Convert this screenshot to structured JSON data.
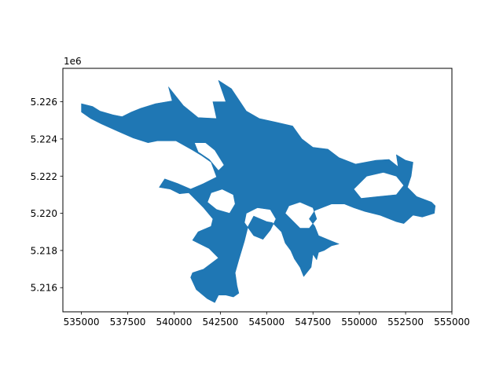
{
  "chart_data": {
    "type": "map",
    "title": "",
    "xlabel": "",
    "ylabel": "",
    "y_offset_label": "1e6",
    "xlim": [
      534000,
      555000
    ],
    "ylim": [
      5214700,
      5227800
    ],
    "xticks": [
      535000,
      537500,
      540000,
      542500,
      545000,
      547500,
      550000,
      552500,
      555000
    ],
    "xtick_labels": [
      "535000",
      "537500",
      "540000",
      "542500",
      "545000",
      "547500",
      "550000",
      "552500",
      "555000"
    ],
    "yticks": [
      5216000,
      5218000,
      5220000,
      5222000,
      5224000,
      5226000
    ],
    "ytick_labels": [
      "5.216",
      "5.218",
      "5.220",
      "5.222",
      "5.224",
      "5.226"
    ],
    "fill_color": "#1f77b4",
    "grid": false,
    "polygon": [
      [
        535000,
        5225900
      ],
      [
        535600,
        5225750
      ],
      [
        536000,
        5225500
      ],
      [
        536700,
        5225300
      ],
      [
        537200,
        5225200
      ],
      [
        537700,
        5225450
      ],
      [
        538200,
        5225650
      ],
      [
        539000,
        5225900
      ],
      [
        539900,
        5226050
      ],
      [
        539700,
        5226800
      ],
      [
        540500,
        5225800
      ],
      [
        541300,
        5225150
      ],
      [
        542300,
        5225100
      ],
      [
        542100,
        5226000
      ],
      [
        542800,
        5226000
      ],
      [
        542400,
        5227150
      ],
      [
        543100,
        5226700
      ],
      [
        543900,
        5225500
      ],
      [
        544600,
        5225100
      ],
      [
        545500,
        5224900
      ],
      [
        546400,
        5224700
      ],
      [
        546900,
        5224000
      ],
      [
        547500,
        5223550
      ],
      [
        548300,
        5223450
      ],
      [
        548900,
        5223000
      ],
      [
        549800,
        5222650
      ],
      [
        550900,
        5222850
      ],
      [
        551600,
        5222900
      ],
      [
        552100,
        5222500
      ],
      [
        552000,
        5223150
      ],
      [
        552500,
        5222850
      ],
      [
        552900,
        5222750
      ],
      [
        552800,
        5222000
      ],
      [
        552600,
        5221400
      ],
      [
        553100,
        5220900
      ],
      [
        553900,
        5220600
      ],
      [
        554100,
        5220400
      ],
      [
        554050,
        5220000
      ],
      [
        553400,
        5219800
      ],
      [
        552900,
        5219900
      ],
      [
        552400,
        5219450
      ],
      [
        552000,
        5219550
      ],
      [
        551100,
        5219900
      ],
      [
        550300,
        5220100
      ],
      [
        549700,
        5220300
      ],
      [
        549200,
        5220500
      ],
      [
        548800,
        5220500
      ],
      [
        548500,
        5220500
      ],
      [
        547600,
        5220150
      ],
      [
        547300,
        5219700
      ],
      [
        547600,
        5219300
      ],
      [
        547800,
        5218800
      ],
      [
        548400,
        5218550
      ],
      [
        548900,
        5218350
      ],
      [
        548500,
        5218250
      ],
      [
        548100,
        5218000
      ],
      [
        547800,
        5217900
      ],
      [
        547700,
        5217500
      ],
      [
        547500,
        5217800
      ],
      [
        547400,
        5217100
      ],
      [
        547000,
        5216600
      ],
      [
        546800,
        5217100
      ],
      [
        546500,
        5217550
      ],
      [
        546300,
        5218000
      ],
      [
        546000,
        5218400
      ],
      [
        545800,
        5219000
      ],
      [
        545300,
        5219500
      ],
      [
        545000,
        5219550
      ],
      [
        544300,
        5219850
      ],
      [
        544000,
        5219300
      ],
      [
        543800,
        5218500
      ],
      [
        543500,
        5217500
      ],
      [
        543300,
        5216800
      ],
      [
        543400,
        5216100
      ],
      [
        543500,
        5215700
      ],
      [
        543200,
        5215500
      ],
      [
        542800,
        5215600
      ],
      [
        542400,
        5215600
      ],
      [
        542200,
        5215200
      ],
      [
        541800,
        5215400
      ],
      [
        541200,
        5215900
      ],
      [
        540900,
        5216550
      ],
      [
        541000,
        5216800
      ],
      [
        541600,
        5217000
      ],
      [
        542400,
        5217600
      ],
      [
        541900,
        5218100
      ],
      [
        541000,
        5218550
      ],
      [
        541300,
        5219000
      ],
      [
        542000,
        5219300
      ],
      [
        542100,
        5219700
      ],
      [
        541600,
        5220300
      ],
      [
        540800,
        5221100
      ],
      [
        540300,
        5221050
      ],
      [
        539800,
        5221300
      ],
      [
        539200,
        5221400
      ],
      [
        539500,
        5221850
      ],
      [
        540200,
        5221600
      ],
      [
        540900,
        5221300
      ],
      [
        541600,
        5221600
      ],
      [
        542300,
        5221950
      ],
      [
        542000,
        5222750
      ],
      [
        541500,
        5223100
      ],
      [
        541000,
        5223400
      ],
      [
        540100,
        5223900
      ],
      [
        539100,
        5223900
      ],
      [
        538600,
        5223800
      ],
      [
        537800,
        5224050
      ],
      [
        537000,
        5224400
      ],
      [
        536100,
        5224800
      ],
      [
        535500,
        5225100
      ],
      [
        535000,
        5225450
      ]
    ],
    "holes": [
      [
        [
          541100,
          5223800
        ],
        [
          541300,
          5223300
        ],
        [
          541900,
          5222900
        ],
        [
          542400,
          5222300
        ],
        [
          542700,
          5222600
        ],
        [
          542200,
          5223400
        ],
        [
          541700,
          5223800
        ]
      ],
      [
        [
          541800,
          5220600
        ],
        [
          542300,
          5220200
        ],
        [
          543000,
          5220000
        ],
        [
          543300,
          5220500
        ],
        [
          543200,
          5221000
        ],
        [
          542600,
          5221300
        ],
        [
          542000,
          5221100
        ]
      ],
      [
        [
          543800,
          5219500
        ],
        [
          544300,
          5218800
        ],
        [
          544800,
          5218600
        ],
        [
          545200,
          5219100
        ],
        [
          545500,
          5219700
        ],
        [
          545200,
          5220200
        ],
        [
          544500,
          5220300
        ],
        [
          543900,
          5220000
        ]
      ],
      [
        [
          546000,
          5220000
        ],
        [
          546800,
          5219200
        ],
        [
          547300,
          5219200
        ],
        [
          547700,
          5219700
        ],
        [
          547500,
          5220300
        ],
        [
          546800,
          5220600
        ],
        [
          546200,
          5220400
        ]
      ],
      [
        [
          549700,
          5221300
        ],
        [
          550400,
          5222000
        ],
        [
          551300,
          5222200
        ],
        [
          552000,
          5222000
        ],
        [
          552400,
          5221500
        ],
        [
          552000,
          5221000
        ],
        [
          551000,
          5220900
        ],
        [
          550100,
          5220800
        ]
      ]
    ]
  }
}
